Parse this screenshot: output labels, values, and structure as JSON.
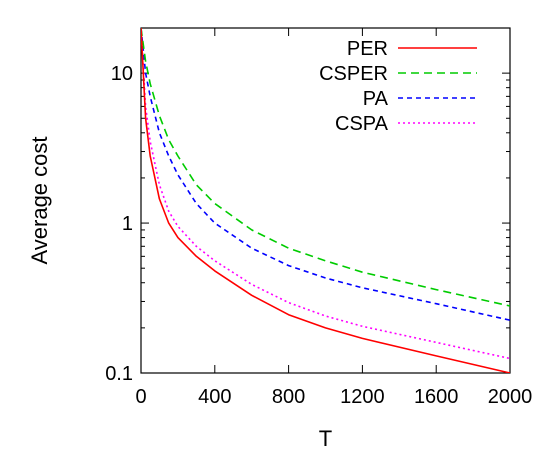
{
  "chart_data": {
    "type": "line",
    "title": "",
    "xlabel": "T",
    "ylabel": "Average cost",
    "xlim": [
      0,
      2000
    ],
    "ylim": [
      0.1,
      20
    ],
    "yscale": "log",
    "grid": false,
    "legend_position": "top-right",
    "xticks": [
      0,
      400,
      800,
      1200,
      1600,
      2000
    ],
    "xtick_labels": [
      "0",
      "400",
      "800",
      "1200",
      "1600",
      "2000"
    ],
    "yticks": [
      0.1,
      1,
      10
    ],
    "ytick_labels": [
      "0.1",
      "1",
      "10"
    ],
    "series": [
      {
        "name": "PER",
        "color": "#ff0000",
        "dash": "solid",
        "x": [
          0,
          25,
          50,
          100,
          150,
          200,
          300,
          400,
          600,
          800,
          1000,
          1200,
          1600,
          2000
        ],
        "y": [
          20,
          5.0,
          2.8,
          1.45,
          1.0,
          0.8,
          0.6,
          0.48,
          0.33,
          0.245,
          0.2,
          0.17,
          0.13,
          0.1
        ]
      },
      {
        "name": "CSPER",
        "color": "#00cc00",
        "dash": "8,5",
        "x": [
          0,
          25,
          50,
          100,
          150,
          200,
          300,
          400,
          600,
          800,
          1000,
          1200,
          1600,
          2000
        ],
        "y": [
          20,
          12,
          8.5,
          5.2,
          3.6,
          2.8,
          1.8,
          1.35,
          0.9,
          0.68,
          0.56,
          0.47,
          0.36,
          0.28
        ]
      },
      {
        "name": "PA",
        "color": "#0000ff",
        "dash": "5,4",
        "x": [
          0,
          25,
          50,
          100,
          150,
          200,
          300,
          400,
          600,
          800,
          1000,
          1200,
          1600,
          2000
        ],
        "y": [
          20,
          10,
          7.0,
          4.0,
          2.8,
          2.1,
          1.35,
          1.0,
          0.68,
          0.52,
          0.43,
          0.37,
          0.29,
          0.225
        ]
      },
      {
        "name": "CSPA",
        "color": "#ff00ff",
        "dash": "2,3",
        "x": [
          0,
          25,
          50,
          100,
          150,
          200,
          300,
          400,
          600,
          800,
          1000,
          1200,
          1600,
          2000
        ],
        "y": [
          20,
          6.0,
          3.5,
          1.8,
          1.2,
          0.95,
          0.7,
          0.56,
          0.39,
          0.295,
          0.24,
          0.205,
          0.16,
          0.125
        ]
      }
    ]
  }
}
